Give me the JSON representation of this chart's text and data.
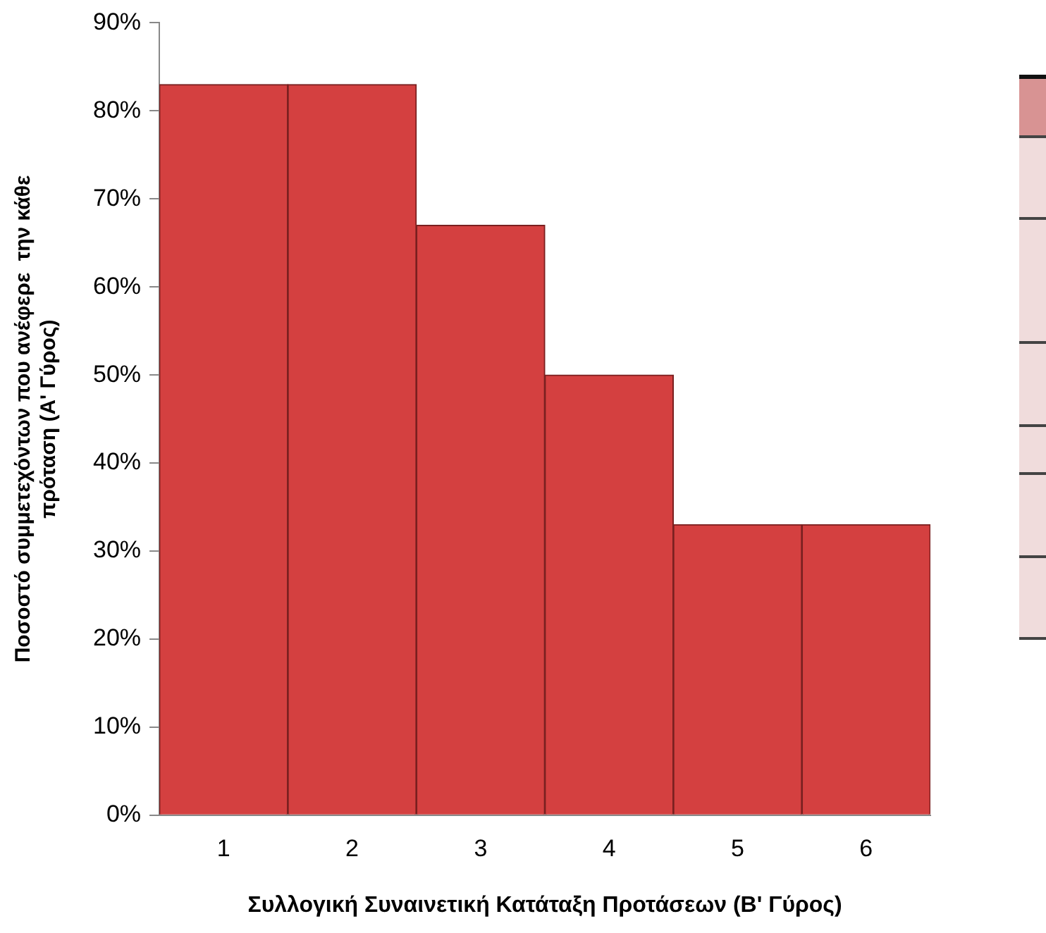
{
  "chart_data": {
    "type": "bar",
    "xlabel": "Συλλογική Συναινετική Κατάταξη Προτάσεων (Β' Γύρος)",
    "ylabel": "Ποσοστό συμμετεχόντων που ανέφερε  την κάθε πρόταση (Α' Γύρος)",
    "categories": [
      "1",
      "2",
      "3",
      "4",
      "5",
      "6"
    ],
    "values": [
      83,
      83,
      67,
      50,
      33,
      33
    ],
    "color": "#d44040",
    "ylim": [
      0,
      90
    ],
    "yticks": [
      {
        "value": 0,
        "label": "0%"
      },
      {
        "value": 10,
        "label": "10%"
      },
      {
        "value": 20,
        "label": "20%"
      },
      {
        "value": 30,
        "label": "30%"
      },
      {
        "value": 40,
        "label": "40%"
      },
      {
        "value": 50,
        "label": "50%"
      },
      {
        "value": 60,
        "label": "60%"
      },
      {
        "value": 70,
        "label": "70%"
      },
      {
        "value": 80,
        "label": "80%"
      },
      {
        "value": 90,
        "label": "90%"
      }
    ],
    "grid": false,
    "legend": false
  }
}
